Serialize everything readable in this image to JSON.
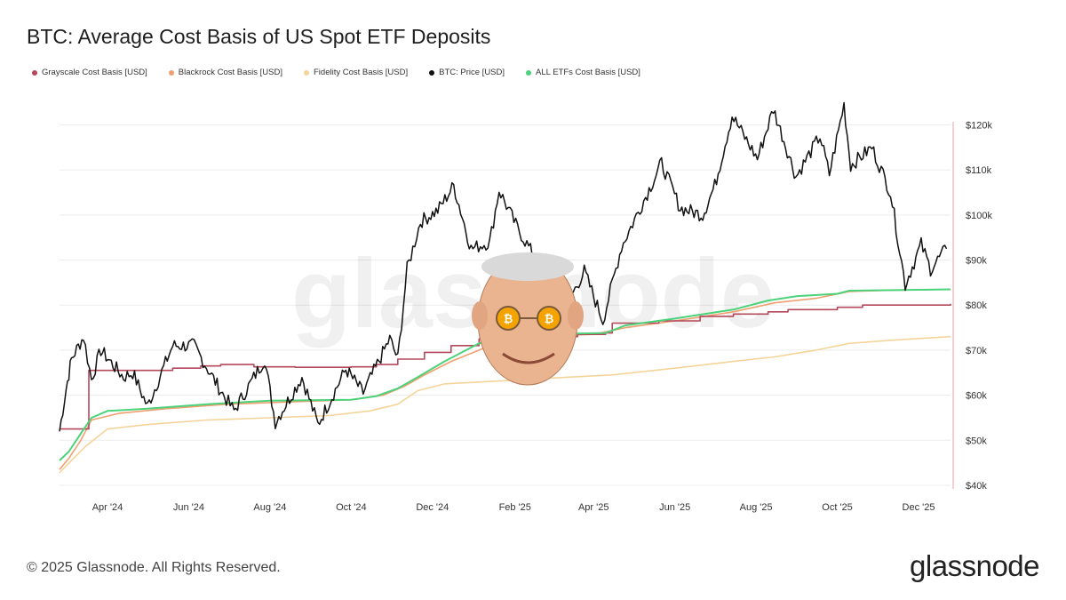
{
  "title": "BTC: Average Cost Basis of US Spot ETF Deposits",
  "footer": {
    "copyright": "© 2025 Glassnode. All Rights Reserved.",
    "logo": "glassnode"
  },
  "watermark": "glassnode",
  "chart_data": {
    "type": "line",
    "title": "BTC: Average Cost Basis of US Spot ETF Deposits",
    "legend_placement": "top-left",
    "grid": true,
    "x_range": [
      "2024-02-25",
      "2025-12-25"
    ],
    "ylim": [
      40000,
      126000
    ],
    "y_ticks": [
      {
        "value": 40000,
        "label": "$40k"
      },
      {
        "value": 50000,
        "label": "$50k"
      },
      {
        "value": 60000,
        "label": "$60k"
      },
      {
        "value": 70000,
        "label": "$70k"
      },
      {
        "value": 80000,
        "label": "$80k"
      },
      {
        "value": 90000,
        "label": "$90k"
      },
      {
        "value": 100000,
        "label": "$100k"
      },
      {
        "value": 110000,
        "label": "$110k"
      },
      {
        "value": 120000,
        "label": "$120k"
      }
    ],
    "x_ticks": [
      {
        "date": "2024-04-01",
        "label": "Apr '24"
      },
      {
        "date": "2024-06-01",
        "label": "Jun '24"
      },
      {
        "date": "2024-08-01",
        "label": "Aug '24"
      },
      {
        "date": "2024-10-01",
        "label": "Oct '24"
      },
      {
        "date": "2024-12-01",
        "label": "Dec '24"
      },
      {
        "date": "2025-02-01",
        "label": "Feb '25"
      },
      {
        "date": "2025-04-01",
        "label": "Apr '25"
      },
      {
        "date": "2025-06-01",
        "label": "Jun '25"
      },
      {
        "date": "2025-08-01",
        "label": "Aug '25"
      },
      {
        "date": "2025-10-01",
        "label": "Oct '25"
      },
      {
        "date": "2025-12-01",
        "label": "Dec '25"
      }
    ],
    "series": [
      {
        "name": "Grayscale Cost Basis [USD]",
        "color": "#b5485b",
        "step": true,
        "points": [
          [
            "2024-02-25",
            52500
          ],
          [
            "2024-03-17",
            52500
          ],
          [
            "2024-03-18",
            65500
          ],
          [
            "2024-04-20",
            65500
          ],
          [
            "2024-05-20",
            66000
          ],
          [
            "2024-06-10",
            66500
          ],
          [
            "2024-06-25",
            66800
          ],
          [
            "2024-07-20",
            66300
          ],
          [
            "2024-08-20",
            66200
          ],
          [
            "2024-10-01",
            66300
          ],
          [
            "2024-10-20",
            66800
          ],
          [
            "2024-11-05",
            68000
          ],
          [
            "2024-11-25",
            69500
          ],
          [
            "2024-12-15",
            71000
          ],
          [
            "2025-01-05",
            72500
          ],
          [
            "2025-01-25",
            73000
          ],
          [
            "2025-03-20",
            73500
          ],
          [
            "2025-04-10",
            73800
          ],
          [
            "2025-04-15",
            76000
          ],
          [
            "2025-05-20",
            76500
          ],
          [
            "2025-06-20",
            77500
          ],
          [
            "2025-07-15",
            78000
          ],
          [
            "2025-08-10",
            78500
          ],
          [
            "2025-08-25",
            79000
          ],
          [
            "2025-10-01",
            79500
          ],
          [
            "2025-10-20",
            80000
          ],
          [
            "2025-12-25",
            80300
          ]
        ]
      },
      {
        "name": "Blackrock Cost Basis [USD]",
        "color": "#f0a070",
        "points": [
          [
            "2024-02-25",
            43500
          ],
          [
            "2024-03-03",
            46000
          ],
          [
            "2024-03-12",
            50000
          ],
          [
            "2024-03-20",
            54500
          ],
          [
            "2024-04-10",
            56000
          ],
          [
            "2024-05-15",
            57000
          ],
          [
            "2024-07-01",
            58000
          ],
          [
            "2024-08-15",
            58500
          ],
          [
            "2024-10-01",
            59000
          ],
          [
            "2024-10-25",
            60000
          ],
          [
            "2024-11-10",
            62000
          ],
          [
            "2024-11-25",
            64500
          ],
          [
            "2024-12-15",
            67500
          ],
          [
            "2025-01-05",
            70000
          ],
          [
            "2025-01-20",
            72000
          ],
          [
            "2025-02-10",
            73000
          ],
          [
            "2025-04-01",
            73500
          ],
          [
            "2025-04-25",
            75000
          ],
          [
            "2025-06-01",
            76500
          ],
          [
            "2025-07-15",
            78500
          ],
          [
            "2025-08-15",
            80500
          ],
          [
            "2025-09-15",
            81500
          ],
          [
            "2025-10-10",
            83000
          ],
          [
            "2025-11-10",
            83300
          ],
          [
            "2025-12-25",
            83500
          ]
        ]
      },
      {
        "name": "Fidelity Cost Basis [USD]",
        "color": "#f5d49a",
        "points": [
          [
            "2024-02-25",
            42800
          ],
          [
            "2024-03-05",
            45500
          ],
          [
            "2024-03-15",
            48500
          ],
          [
            "2024-04-01",
            52500
          ],
          [
            "2024-05-01",
            53500
          ],
          [
            "2024-06-15",
            54500
          ],
          [
            "2024-08-01",
            55000
          ],
          [
            "2024-09-15",
            55500
          ],
          [
            "2024-10-15",
            56500
          ],
          [
            "2024-11-05",
            58000
          ],
          [
            "2024-11-20",
            61000
          ],
          [
            "2024-12-10",
            62500
          ],
          [
            "2025-01-10",
            63000
          ],
          [
            "2025-03-01",
            63800
          ],
          [
            "2025-04-15",
            64500
          ],
          [
            "2025-06-01",
            66000
          ],
          [
            "2025-07-15",
            67500
          ],
          [
            "2025-08-15",
            68500
          ],
          [
            "2025-09-15",
            70000
          ],
          [
            "2025-10-10",
            71500
          ],
          [
            "2025-11-10",
            72200
          ],
          [
            "2025-12-25",
            73000
          ]
        ]
      },
      {
        "name": "BTC: Price [USD]",
        "color": "#111111",
        "points": [
          [
            "2024-02-25",
            52000
          ],
          [
            "2024-03-01",
            61500
          ],
          [
            "2024-03-05",
            68000
          ],
          [
            "2024-03-14",
            73000
          ],
          [
            "2024-03-20",
            63500
          ],
          [
            "2024-03-27",
            70000
          ],
          [
            "2024-04-13",
            64000
          ],
          [
            "2024-04-20",
            65000
          ],
          [
            "2024-05-01",
            57500
          ],
          [
            "2024-05-20",
            71000
          ],
          [
            "2024-06-05",
            71000
          ],
          [
            "2024-06-25",
            61000
          ],
          [
            "2024-07-05",
            56500
          ],
          [
            "2024-07-28",
            68000
          ],
          [
            "2024-08-05",
            54000
          ],
          [
            "2024-08-25",
            64000
          ],
          [
            "2024-09-06",
            53500
          ],
          [
            "2024-09-27",
            65800
          ],
          [
            "2024-10-10",
            60500
          ],
          [
            "2024-10-30",
            72500
          ],
          [
            "2024-11-05",
            68000
          ],
          [
            "2024-11-12",
            88000
          ],
          [
            "2024-11-22",
            98500
          ],
          [
            "2024-12-05",
            101000
          ],
          [
            "2024-12-17",
            106500
          ],
          [
            "2024-12-30",
            92500
          ],
          [
            "2025-01-13",
            94000
          ],
          [
            "2025-01-20",
            105500
          ],
          [
            "2025-02-03",
            97000
          ],
          [
            "2025-02-25",
            86000
          ],
          [
            "2025-03-10",
            79000
          ],
          [
            "2025-03-25",
            87500
          ],
          [
            "2025-04-08",
            76500
          ],
          [
            "2025-04-22",
            93000
          ],
          [
            "2025-05-10",
            104000
          ],
          [
            "2025-05-22",
            111500
          ],
          [
            "2025-06-05",
            101500
          ],
          [
            "2025-06-22",
            100000
          ],
          [
            "2025-07-01",
            106500
          ],
          [
            "2025-07-14",
            122000
          ],
          [
            "2025-08-02",
            112500
          ],
          [
            "2025-08-14",
            123500
          ],
          [
            "2025-08-31",
            108500
          ],
          [
            "2025-09-18",
            117500
          ],
          [
            "2025-09-25",
            109000
          ],
          [
            "2025-10-06",
            124500
          ],
          [
            "2025-10-11",
            111000
          ],
          [
            "2025-10-27",
            115000
          ],
          [
            "2025-11-10",
            105000
          ],
          [
            "2025-11-21",
            84500
          ],
          [
            "2025-12-03",
            93500
          ],
          [
            "2025-12-10",
            88000
          ],
          [
            "2025-12-22",
            92500
          ]
        ]
      },
      {
        "name": "ALL ETFs Cost Basis [USD]",
        "color": "#4cd27a",
        "points": [
          [
            "2024-02-25",
            45500
          ],
          [
            "2024-03-03",
            47500
          ],
          [
            "2024-03-12",
            51500
          ],
          [
            "2024-03-20",
            55000
          ],
          [
            "2024-04-01",
            56500
          ],
          [
            "2024-05-01",
            57000
          ],
          [
            "2024-06-15",
            58000
          ],
          [
            "2024-08-01",
            58800
          ],
          [
            "2024-10-01",
            59000
          ],
          [
            "2024-10-20",
            59800
          ],
          [
            "2024-11-05",
            61500
          ],
          [
            "2024-11-20",
            64000
          ],
          [
            "2024-12-10",
            67500
          ],
          [
            "2025-01-05",
            71500
          ],
          [
            "2025-01-25",
            73000
          ],
          [
            "2025-02-15",
            73500
          ],
          [
            "2025-04-10",
            73800
          ],
          [
            "2025-04-25",
            75500
          ],
          [
            "2025-06-01",
            77000
          ],
          [
            "2025-07-15",
            79000
          ],
          [
            "2025-08-10",
            81000
          ],
          [
            "2025-09-01",
            82000
          ],
          [
            "2025-10-01",
            82500
          ],
          [
            "2025-10-10",
            83200
          ],
          [
            "2025-12-25",
            83500
          ]
        ]
      }
    ]
  }
}
